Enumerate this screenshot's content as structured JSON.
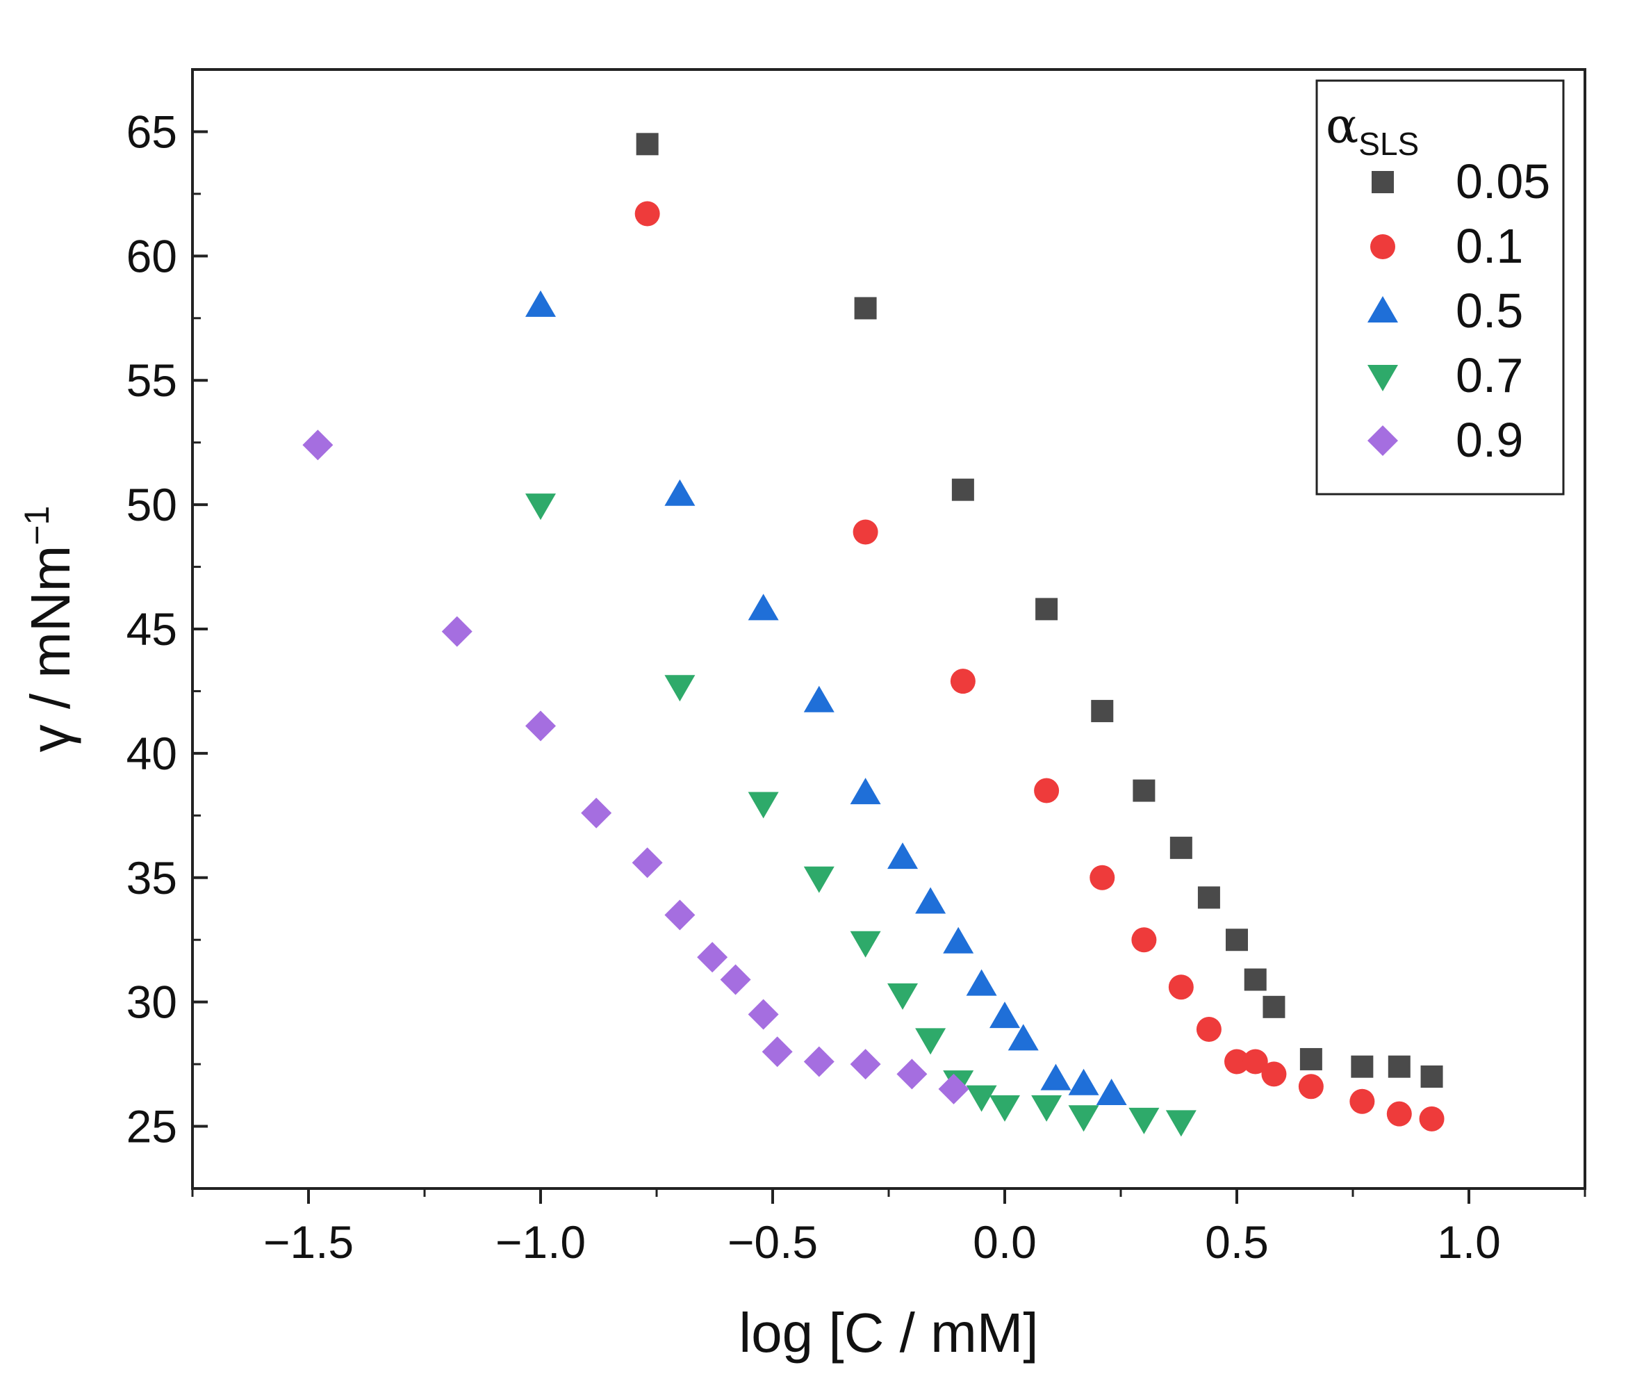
{
  "chart_data": {
    "type": "scatter",
    "xlabel": "log [C / mM]",
    "ylabel": "γ / mNm",
    "ylabel_superscript": "−1",
    "xlim": [
      -1.75,
      1.25
    ],
    "ylim": [
      22.5,
      67.5
    ],
    "x_ticks": [
      -1.5,
      -1.0,
      -0.5,
      0.0,
      0.5,
      1.0
    ],
    "x_tick_labels": [
      "−1.5",
      "−1.0",
      "−0.5",
      "0.0",
      "0.5",
      "1.0"
    ],
    "y_ticks": [
      25,
      30,
      35,
      40,
      45,
      50,
      55,
      60,
      65
    ],
    "y_tick_labels": [
      "25",
      "30",
      "35",
      "40",
      "45",
      "50",
      "55",
      "60",
      "65"
    ],
    "grid": false,
    "legend": {
      "placement": "top-right",
      "title_main": "α",
      "title_sub": "SLS"
    },
    "series": [
      {
        "name": "0.05",
        "marker": "square",
        "color": "#4a4a4a",
        "x": [
          -0.77,
          -0.3,
          -0.09,
          0.09,
          0.21,
          0.3,
          0.38,
          0.44,
          0.5,
          0.54,
          0.58,
          0.66,
          0.77,
          0.85,
          0.92
        ],
        "y": [
          64.5,
          57.9,
          50.6,
          45.8,
          41.7,
          38.5,
          36.2,
          34.2,
          32.5,
          30.9,
          29.8,
          27.7,
          27.4,
          27.4,
          27.0
        ]
      },
      {
        "name": "0.1",
        "marker": "circle",
        "color": "#ee3b3b",
        "x": [
          -0.77,
          -0.3,
          -0.09,
          0.09,
          0.21,
          0.3,
          0.38,
          0.44,
          0.5,
          0.54,
          0.58,
          0.66,
          0.77,
          0.85,
          0.92
        ],
        "y": [
          61.7,
          48.9,
          42.9,
          38.5,
          35.0,
          32.5,
          30.6,
          28.9,
          27.6,
          27.6,
          27.1,
          26.6,
          26.0,
          25.5,
          25.3
        ]
      },
      {
        "name": "0.5",
        "marker": "triangle-up",
        "color": "#1f6fd8",
        "x": [
          -1.0,
          -0.7,
          -0.52,
          -0.4,
          -0.3,
          -0.22,
          -0.16,
          -0.1,
          -0.05,
          0.0,
          0.04,
          0.11,
          0.17,
          0.23
        ],
        "y": [
          58.0,
          50.4,
          45.8,
          42.1,
          38.4,
          35.8,
          34.0,
          32.4,
          30.7,
          29.4,
          28.5,
          26.9,
          26.7,
          26.3
        ]
      },
      {
        "name": "0.7",
        "marker": "triangle-down",
        "color": "#2eaa6a",
        "x": [
          -1.0,
          -0.7,
          -0.52,
          -0.4,
          -0.3,
          -0.22,
          -0.16,
          -0.1,
          -0.05,
          0.0,
          0.09,
          0.17,
          0.3,
          0.38
        ],
        "y": [
          50.0,
          42.7,
          38.0,
          35.0,
          32.4,
          30.3,
          28.5,
          26.8,
          26.2,
          25.8,
          25.8,
          25.4,
          25.3,
          25.2
        ]
      },
      {
        "name": "0.9",
        "marker": "diamond",
        "color": "#a56ee0",
        "x": [
          -1.48,
          -1.18,
          -1.0,
          -0.88,
          -0.77,
          -0.7,
          -0.63,
          -0.58,
          -0.52,
          -0.49,
          -0.4,
          -0.3,
          -0.2,
          -0.11
        ],
        "y": [
          52.4,
          44.9,
          41.1,
          37.6,
          35.6,
          33.5,
          31.8,
          30.9,
          29.5,
          28.0,
          27.6,
          27.5,
          27.1,
          26.5
        ]
      }
    ]
  }
}
